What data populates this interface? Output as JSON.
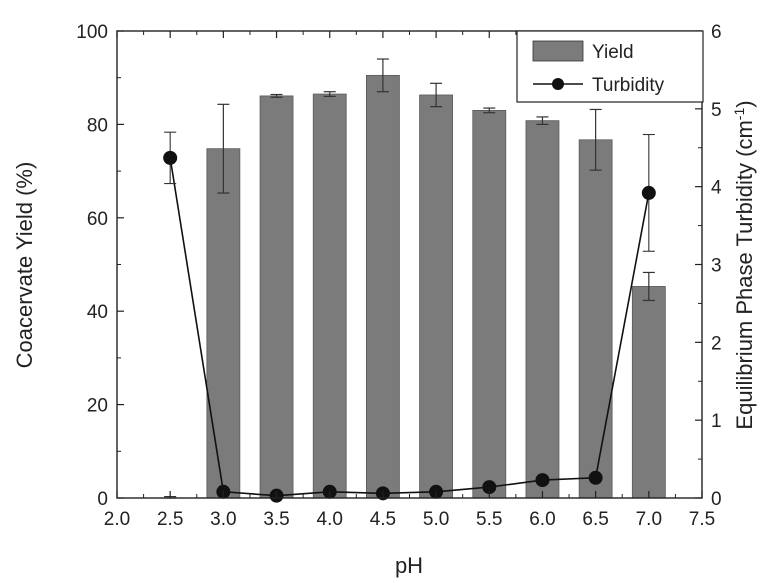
{
  "chart_data": {
    "type": "bar",
    "xlabel": "pH",
    "ylabel": "Coacervate Yield (%)",
    "y2label_main": "Equilibrium Phase Turbidity (cm",
    "y2label_sup": "-1",
    "y2label_close": ")",
    "xlim": [
      2.0,
      7.5
    ],
    "ylim": [
      0,
      100
    ],
    "y2lim": [
      0,
      6
    ],
    "xticks": [
      "2.0",
      "2.5",
      "3.0",
      "3.5",
      "4.0",
      "4.5",
      "5.0",
      "5.5",
      "6.0",
      "6.5",
      "7.0",
      "7.5"
    ],
    "yticks": [
      "0",
      "20",
      "40",
      "60",
      "80",
      "100"
    ],
    "y2ticks": [
      "0",
      "1",
      "2",
      "3",
      "4",
      "5",
      "6"
    ],
    "legend_position": "top-right",
    "bar_color": "#7b7b7b",
    "line_color": "#111111",
    "series": [
      {
        "name": "Yield",
        "kind": "bar",
        "axis": "left",
        "x": [
          2.5,
          3.0,
          3.5,
          4.0,
          4.5,
          5.0,
          5.5,
          6.0,
          6.5,
          7.0
        ],
        "values": [
          0.0,
          74.8,
          86.1,
          86.5,
          90.5,
          86.3,
          83.0,
          80.8,
          76.7,
          45.3
        ],
        "errors": [
          0.3,
          9.5,
          0.3,
          0.5,
          3.5,
          2.5,
          0.5,
          0.8,
          6.5,
          3.0
        ]
      },
      {
        "name": "Turbidity",
        "kind": "line",
        "axis": "right",
        "x": [
          2.5,
          3.0,
          3.5,
          4.0,
          4.5,
          5.0,
          5.5,
          6.0,
          6.5,
          7.0
        ],
        "values": [
          4.37,
          0.08,
          0.03,
          0.08,
          0.06,
          0.08,
          0.14,
          0.23,
          0.26,
          3.92
        ],
        "errors": [
          0.33,
          0,
          0,
          0,
          0,
          0,
          0,
          0,
          0,
          0.75
        ]
      }
    ]
  }
}
